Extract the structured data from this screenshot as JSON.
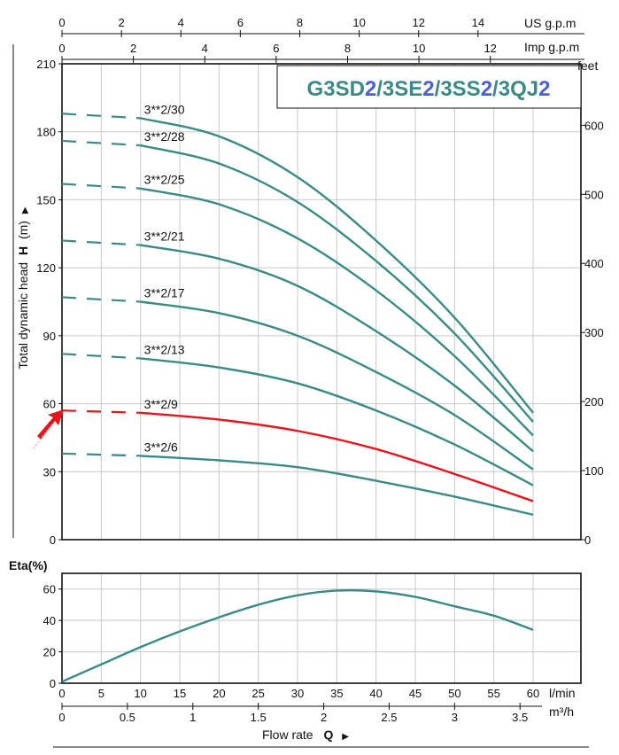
{
  "chart_data": [
    {
      "type": "line",
      "title": "G3SD2/3SE2/3SS2/3QJ2",
      "title_parts": [
        {
          "text": "G3SD",
          "color": "#3a8a86"
        },
        {
          "text": "2",
          "color": "#4a5fd8"
        },
        {
          "text": "/3SE",
          "color": "#3a8a86"
        },
        {
          "text": "2",
          "color": "#4a5fd8"
        },
        {
          "text": "/3SS",
          "color": "#3a8a86"
        },
        {
          "text": "2",
          "color": "#4a5fd8"
        },
        {
          "text": "/3QJ",
          "color": "#3a8a86"
        },
        {
          "text": "2",
          "color": "#4a5fd8"
        }
      ],
      "ylabel_prefix": "Total dynamic head",
      "ylabel_bold": "H",
      "ylabel_unit": "(m)",
      "ylim": [
        0,
        210
      ],
      "yticks": [
        0,
        30,
        60,
        90,
        120,
        150,
        180,
        210
      ],
      "y2label": "feet",
      "y2ticks": [
        0,
        100,
        200,
        300,
        400,
        500,
        600
      ],
      "xlim": [
        0,
        60
      ],
      "top_axes": [
        {
          "label": "US g.p.m",
          "ticks": [
            0,
            2,
            4,
            6,
            8,
            10,
            12,
            14
          ],
          "lpm_per_unit": 3.785
        },
        {
          "label": "Imp g.p.m",
          "ticks": [
            0,
            2,
            4,
            6,
            8,
            10,
            12
          ],
          "lpm_per_unit": 4.546
        }
      ],
      "grid": true,
      "colors": {
        "curve": "#3a8a86",
        "highlight": "#e8141a",
        "grid": "#c8c8c8",
        "axis": "#111111"
      },
      "series": [
        {
          "name": "3**2/30",
          "x": [
            0,
            10,
            20,
            30,
            40,
            50,
            60
          ],
          "values": [
            188,
            186,
            178,
            160,
            132,
            98,
            56
          ],
          "highlight": false
        },
        {
          "name": "3**2/28",
          "x": [
            0,
            10,
            20,
            30,
            40,
            50,
            60
          ],
          "values": [
            176,
            174,
            166,
            149,
            123,
            91,
            52
          ],
          "highlight": false
        },
        {
          "name": "3**2/25",
          "x": [
            0,
            10,
            20,
            30,
            40,
            50,
            60
          ],
          "values": [
            157,
            155,
            148,
            133,
            110,
            81,
            46
          ],
          "highlight": false
        },
        {
          "name": "3**2/21",
          "x": [
            0,
            10,
            20,
            30,
            40,
            50,
            60
          ],
          "values": [
            132,
            130,
            124,
            112,
            92,
            68,
            39
          ],
          "highlight": false
        },
        {
          "name": "3**2/17",
          "x": [
            0,
            10,
            20,
            30,
            40,
            50,
            60
          ],
          "values": [
            107,
            105,
            100,
            90,
            74,
            55,
            31
          ],
          "highlight": false
        },
        {
          "name": "3**2/13",
          "x": [
            0,
            10,
            20,
            30,
            40,
            50,
            60
          ],
          "values": [
            82,
            80,
            76,
            69,
            57,
            42,
            24
          ],
          "highlight": false
        },
        {
          "name": "3**2/9",
          "x": [
            0,
            10,
            20,
            30,
            40,
            50,
            60
          ],
          "values": [
            57,
            56,
            53,
            48,
            40,
            29,
            17
          ],
          "highlight": true
        },
        {
          "name": "3**2/6",
          "x": [
            0,
            10,
            20,
            30,
            40,
            50,
            60
          ],
          "values": [
            38,
            37,
            35,
            32,
            26,
            19,
            11
          ],
          "highlight": false
        }
      ]
    },
    {
      "type": "line",
      "ylabel": "Eta(%)",
      "ylim": [
        0,
        70
      ],
      "yticks": [
        0,
        20,
        40,
        60
      ],
      "xlim": [
        0,
        60
      ],
      "xticks": [
        0,
        5,
        10,
        15,
        20,
        25,
        30,
        35,
        40,
        45,
        50,
        55,
        60
      ],
      "xunit": "l/min",
      "x2ticks": [
        "0",
        "0.5",
        "1",
        "1.5",
        "2",
        "2.5",
        "3",
        "3.5"
      ],
      "x2unit": "m³/h",
      "xlabel": "Flow rate",
      "xlabel_bold": "Q",
      "grid": true,
      "series": [
        {
          "x": [
            0,
            5,
            10,
            15,
            20,
            25,
            30,
            35,
            40,
            45,
            50,
            55,
            60
          ],
          "values": [
            1,
            12,
            23,
            33,
            42,
            50,
            56,
            59,
            58.5,
            55,
            49,
            43,
            34
          ]
        }
      ]
    }
  ]
}
